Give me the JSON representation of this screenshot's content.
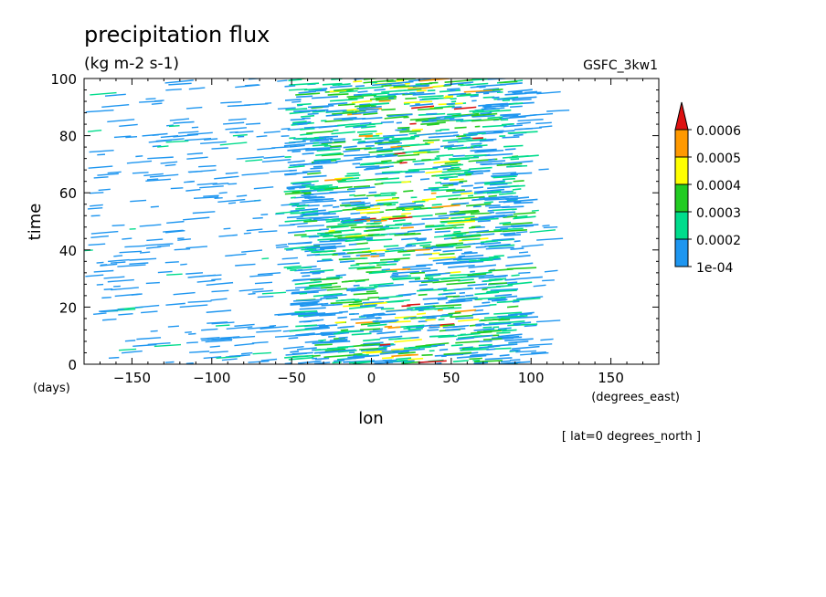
{
  "chart_data": {
    "type": "heatmap",
    "title": "precipitation flux",
    "units": "(kg m-2 s-1)",
    "dataset_label": "GSFC_3kw1",
    "xlabel": "lon",
    "ylabel": "time",
    "x_units": "(degrees_east)",
    "y_units": "(days)",
    "footnote": "[ lat=0 degrees_north ]",
    "xlim": [
      -180,
      180
    ],
    "ylim": [
      0,
      100
    ],
    "x_ticks": [
      -150,
      -100,
      -50,
      0,
      50,
      100,
      150
    ],
    "x_tick_labels": [
      "−150",
      "−100",
      "−50",
      "0",
      "50",
      "100",
      "150"
    ],
    "y_ticks": [
      0,
      20,
      40,
      60,
      80,
      100
    ],
    "y_tick_labels": [
      "0",
      "20",
      "40",
      "60",
      "80",
      "100"
    ],
    "colorbar": {
      "levels": [
        0.0001,
        0.0002,
        0.0003,
        0.0004,
        0.0005,
        0.0006
      ],
      "level_labels": [
        "1e-04",
        "0.0002",
        "0.0003",
        "0.0004",
        "0.0005",
        "0.0006"
      ],
      "colors": [
        "#1e96f0",
        "#00dc8c",
        "#22cc22",
        "#ffff00",
        "#ff9900",
        "#dd1111"
      ],
      "extend": "max"
    },
    "description_of_field": {
      "core_lon_range": [
        -55,
        90
      ],
      "core_peak_lon_range": [
        -30,
        60
      ],
      "scattered_lon_range": [
        -180,
        110
      ]
    }
  }
}
